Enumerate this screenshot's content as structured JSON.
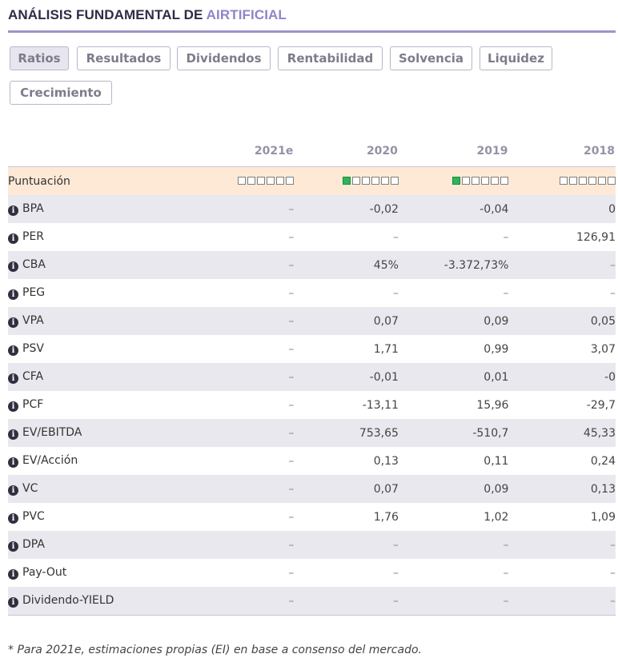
{
  "header": {
    "title_prefix": "ANÁLISIS FUNDAMENTAL DE ",
    "company": "AIRTIFICIAL",
    "accent_color": "#8d86c9"
  },
  "tabs": [
    {
      "label": "Ratios",
      "active": true
    },
    {
      "label": "Resultados",
      "active": false
    },
    {
      "label": "Dividendos",
      "active": false
    },
    {
      "label": "Rentabilidad",
      "active": false
    },
    {
      "label": "Solvencia",
      "active": false
    },
    {
      "label": "Liquidez",
      "active": false
    },
    {
      "label": "Crecimiento",
      "active": false
    }
  ],
  "table": {
    "columns": [
      "2021e",
      "2020",
      "2019",
      "2018"
    ],
    "score": {
      "label": "Puntuación",
      "filled": [
        0,
        1,
        1,
        0
      ],
      "total": 6
    },
    "rows": [
      {
        "label": "BPA",
        "values": [
          "–",
          "-0,02",
          "-0,04",
          "0"
        ]
      },
      {
        "label": "PER",
        "values": [
          "–",
          "–",
          "–",
          "126,91"
        ]
      },
      {
        "label": "CBA",
        "values": [
          "–",
          "45%",
          "-3.372,73%",
          "–"
        ]
      },
      {
        "label": "PEG",
        "values": [
          "–",
          "–",
          "–",
          "–"
        ]
      },
      {
        "label": "VPA",
        "values": [
          "–",
          "0,07",
          "0,09",
          "0,05"
        ]
      },
      {
        "label": "PSV",
        "values": [
          "–",
          "1,71",
          "0,99",
          "3,07"
        ]
      },
      {
        "label": "CFA",
        "values": [
          "–",
          "-0,01",
          "0,01",
          "-0"
        ]
      },
      {
        "label": "PCF",
        "values": [
          "–",
          "-13,11",
          "15,96",
          "-29,7"
        ]
      },
      {
        "label": "EV/EBITDA",
        "values": [
          "–",
          "753,65",
          "-510,7",
          "45,33"
        ]
      },
      {
        "label": "EV/Acción",
        "values": [
          "–",
          "0,13",
          "0,11",
          "0,24"
        ]
      },
      {
        "label": "VC",
        "values": [
          "–",
          "0,07",
          "0,09",
          "0,13"
        ]
      },
      {
        "label": "PVC",
        "values": [
          "–",
          "1,76",
          "1,02",
          "1,09"
        ]
      },
      {
        "label": "DPA",
        "values": [
          "–",
          "–",
          "–",
          "–"
        ]
      },
      {
        "label": "Pay-Out",
        "values": [
          "–",
          "–",
          "–",
          "–"
        ]
      },
      {
        "label": "Dividendo-YIELD",
        "values": [
          "–",
          "–",
          "–",
          "–"
        ]
      }
    ]
  },
  "footnote": "* Para 2021e, estimaciones propias (EI) en base a consenso del mercado."
}
